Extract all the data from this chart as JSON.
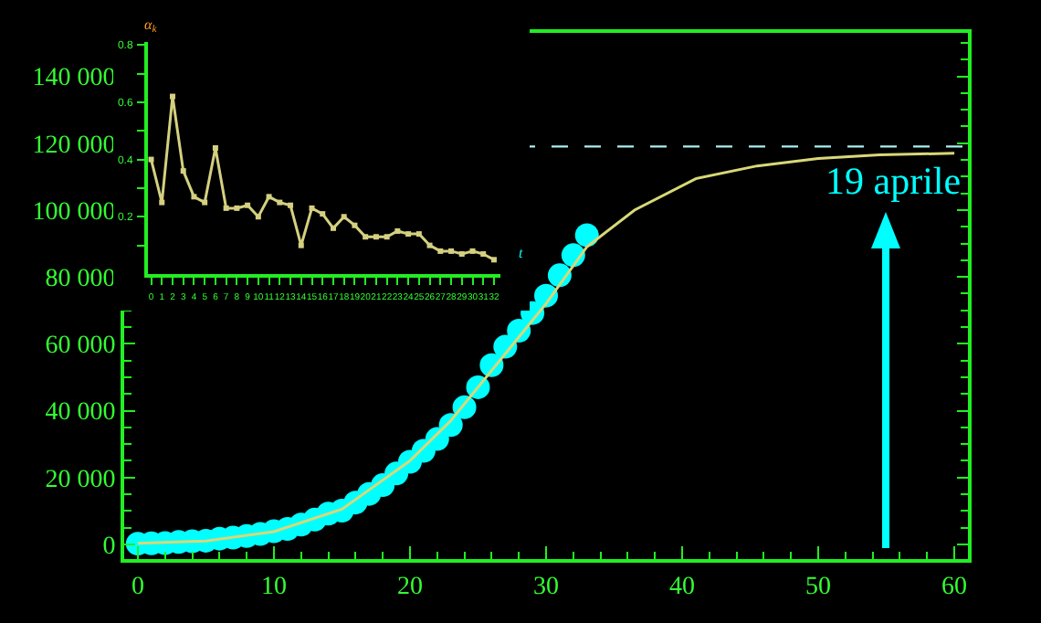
{
  "chart_data": [
    {
      "type": "line",
      "marker": "none",
      "series": [
        {
          "type": "scatter",
          "marker": "circle",
          "color": "#00ffff",
          "x": [
            0,
            1,
            2,
            3,
            4,
            5,
            6,
            7,
            8,
            9,
            10,
            11,
            12,
            13,
            14,
            15,
            16,
            17,
            18,
            19,
            20,
            21,
            22,
            23,
            24,
            25,
            26,
            27,
            28,
            29,
            30,
            31,
            32,
            33
          ],
          "values": [
            200,
            300,
            400,
            700,
            900,
            1100,
            1700,
            2000,
            2500,
            3100,
            3900,
            4600,
            5900,
            7400,
            9200,
            10100,
            12500,
            15100,
            17700,
            21200,
            24700,
            28000,
            31500,
            35700,
            41000,
            47000,
            53600,
            59100,
            63900,
            69200,
            74400,
            80500,
            86500,
            92500
          ]
        },
        {
          "color": "#d8d878",
          "x": [
            0,
            5,
            10,
            15,
            20,
            23,
            26,
            28,
            30,
            33,
            36.5,
            41,
            45.5,
            50,
            54.5,
            60
          ],
          "values": [
            300,
            1000,
            3800,
            10500,
            25000,
            37000,
            52000,
            62000,
            72000,
            89000,
            100000,
            109400,
            113200,
            115400,
            116500,
            117000
          ]
        }
      ],
      "xlim": [
        -1,
        61
      ],
      "xticks": [
        0,
        10,
        20,
        30,
        40,
        50,
        60
      ],
      "ylim": [
        -4400,
        153000
      ],
      "yticks": [
        0,
        {
          "value": 20000,
          "label": "20 000"
        },
        {
          "value": 40000,
          "label": "40 000"
        },
        {
          "value": 60000,
          "label": "60 000"
        },
        {
          "value": 80000,
          "label": "80 000"
        },
        {
          "value": 100000,
          "label": "100 000"
        },
        {
          "value": 120000,
          "label": "120 000"
        },
        {
          "value": 140000,
          "label": "140 000"
        }
      ],
      "ref_lines": [
        {
          "axis": "y",
          "value": 119000,
          "color": "#a8f0f0",
          "line_style": "dashed"
        }
      ],
      "annotations": [
        "19 aprile"
      ],
      "grid": false
    },
    {
      "type": "line",
      "marker": "square",
      "xlabel": "t",
      "ylabel": "α$_{k}$",
      "series": [
        {
          "color": "#d4d080",
          "x": [
            0,
            1,
            2,
            3,
            4,
            5,
            6,
            7,
            8,
            9,
            10,
            11,
            12,
            13,
            14,
            15,
            16,
            17,
            18,
            19,
            20,
            21,
            22,
            23,
            24,
            25,
            26,
            27,
            28,
            29,
            30,
            31,
            32
          ],
          "values": [
            0.4,
            0.25,
            0.62,
            0.36,
            0.27,
            0.25,
            0.44,
            0.23,
            0.23,
            0.24,
            0.2,
            0.27,
            0.25,
            0.24,
            0.1,
            0.23,
            0.21,
            0.16,
            0.2,
            0.17,
            0.13,
            0.13,
            0.13,
            0.15,
            0.14,
            0.14,
            0.1,
            0.08,
            0.08,
            0.07,
            0.08,
            0.07,
            0.05
          ]
        }
      ],
      "xlim": [
        -0.3,
        32.6
      ],
      "xticks": [
        0,
        1,
        2,
        3,
        4,
        5,
        6,
        7,
        8,
        9,
        10,
        11,
        12,
        13,
        14,
        15,
        16,
        17,
        18,
        19,
        20,
        21,
        22,
        23,
        24,
        25,
        26,
        27,
        28,
        29,
        30,
        31,
        32
      ],
      "ylim": [
        0,
        0.81
      ],
      "yticks": [
        {
          "value": 0.1,
          "label": null
        },
        0.2,
        {
          "value": 0.3,
          "label": null
        },
        0.4,
        {
          "value": 0.5,
          "label": null
        },
        0.6,
        {
          "value": 0.7,
          "label": null
        },
        0.8
      ],
      "grid": false
    }
  ]
}
